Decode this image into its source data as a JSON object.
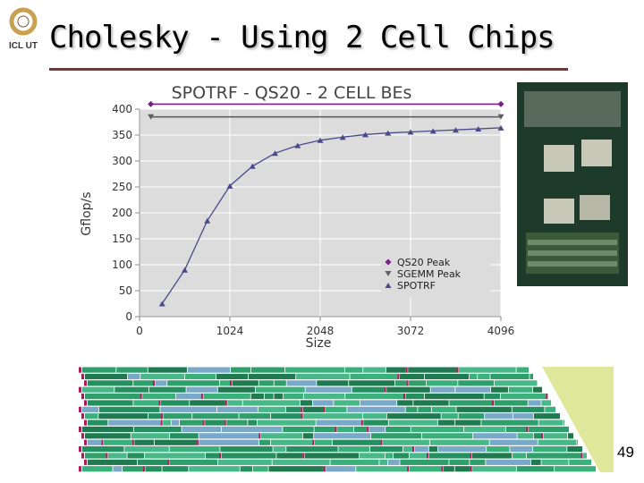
{
  "slide": {
    "title": "Cholesky - Using 2 Cell Chips",
    "logo_text": "ICL UT",
    "page_number": "49",
    "accent_color": "#6b3a3a"
  },
  "chart_data": {
    "type": "line",
    "title": "SPOTRF - QS20 - 2 CELL BEs",
    "xlabel": "Size",
    "ylabel": "Gflop/s",
    "xlim": [
      0,
      4096
    ],
    "ylim": [
      0,
      400
    ],
    "xticks": [
      "0",
      "1024",
      "2048",
      "3072",
      "4096"
    ],
    "yticks": [
      "0",
      "50",
      "100",
      "150",
      "200",
      "250",
      "300",
      "350",
      "400"
    ],
    "grid": true,
    "legend_position": "bottom-right",
    "series": [
      {
        "name": "QS20 Peak",
        "color": "#7a1f86",
        "marker": "diamond",
        "x": [
          128,
          4096
        ],
        "values": [
          409.6,
          409.6
        ]
      },
      {
        "name": "SGEMM Peak",
        "color": "#606060",
        "marker": "triangle-down",
        "x": [
          128,
          4096
        ],
        "values": [
          385,
          385
        ]
      },
      {
        "name": "SPOTRF",
        "color": "#4a4a8a",
        "marker": "triangle-up",
        "x": [
          256,
          512,
          768,
          1024,
          1280,
          1536,
          1792,
          2048,
          2304,
          2560,
          2816,
          3072,
          3328,
          3584,
          3840,
          4096
        ],
        "values": [
          25,
          90,
          185,
          252,
          290,
          315,
          330,
          340,
          346,
          351,
          354,
          356,
          358,
          360,
          362,
          364
        ]
      }
    ]
  }
}
